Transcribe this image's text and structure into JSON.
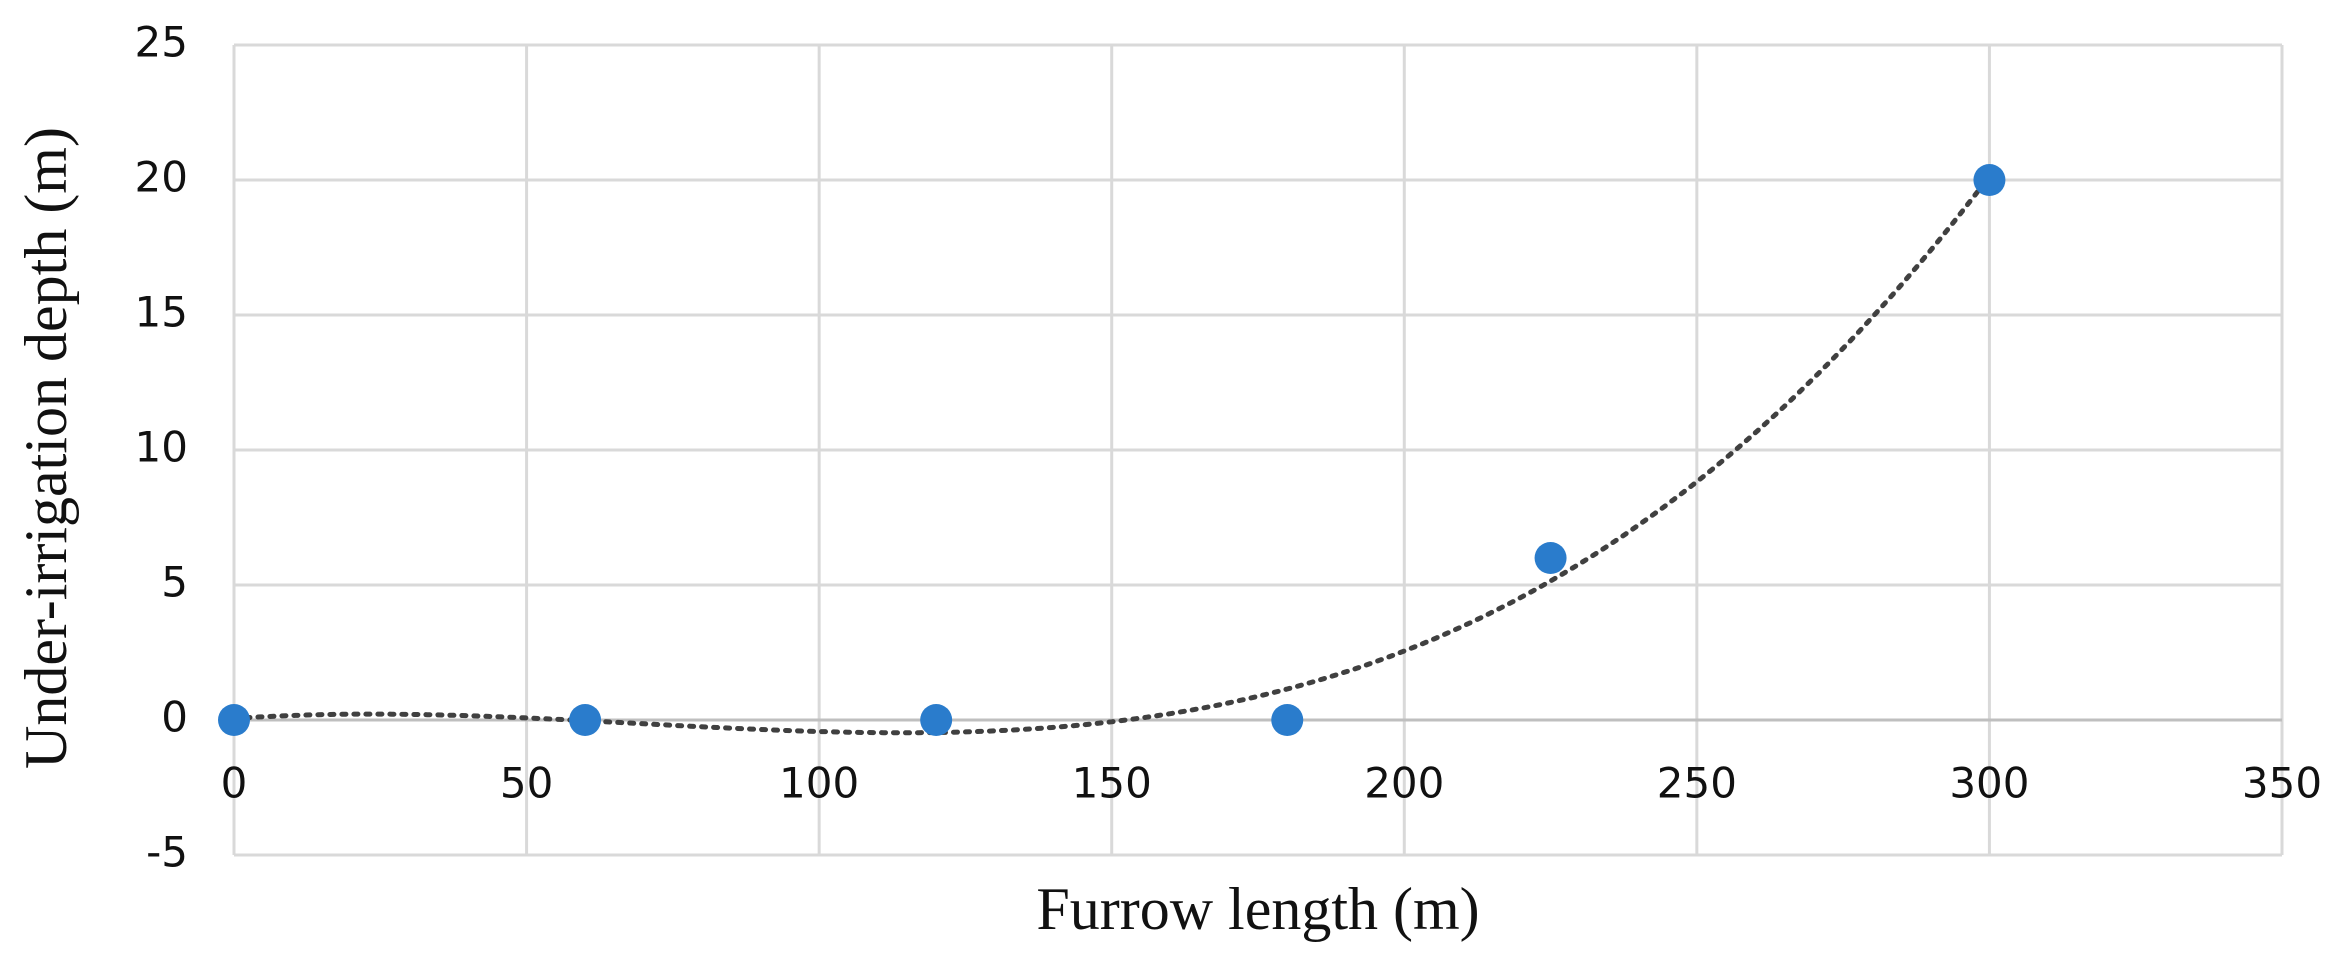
{
  "chart_data": {
    "type": "scatter",
    "x_label": "Furrow length (m)",
    "y_label": "Under-irrigation depth (m)",
    "x": [
      0,
      60,
      120,
      180,
      225,
      300
    ],
    "values": [
      0,
      0,
      0,
      0,
      6,
      20
    ],
    "color": "#2a7ccc",
    "xlim": [
      0,
      350
    ],
    "xticks": [
      0,
      50,
      100,
      150,
      200,
      250,
      300,
      350
    ],
    "ylim": [
      -5,
      25
    ],
    "yticks": [
      -5,
      0,
      5,
      10,
      15,
      20,
      25
    ],
    "grid": true,
    "trendline": "polynomial",
    "trendline_order": 3,
    "trendline_color": "#404040"
  }
}
